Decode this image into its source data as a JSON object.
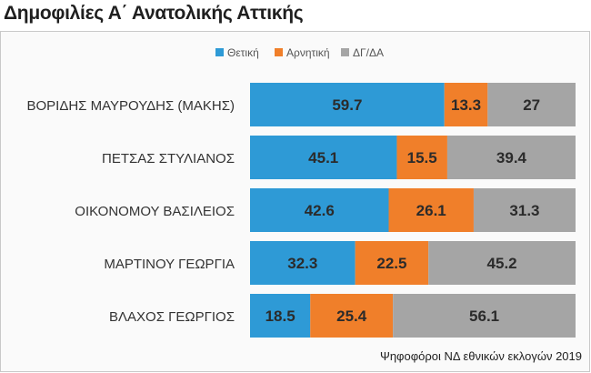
{
  "title": "Δημοφιλίες Α΄ Ανατολικής Αττικής",
  "note": "Ψηφοφόροι ΝΔ εθνικών εκλογών 2019",
  "chart_data": {
    "type": "bar",
    "orientation": "horizontal",
    "stacked": true,
    "categories": [
      "ΒΟΡΙΔΗΣ ΜΑΥΡΟΥΔΗΣ (ΜΑΚΗΣ)",
      "ΠΕΤΣΑΣ ΣΤΥΛΙΑΝΟΣ",
      "ΟΙΚΟΝΟΜΟΥ ΒΑΣΙΛΕΙΟΣ",
      "ΜΑΡΤΙΝΟΥ ΓΕΩΡΓΙΑ",
      "ΒΛΑΧΟΣ ΓΕΩΡΓΙΟΣ"
    ],
    "series": [
      {
        "name": "Θετική",
        "color": "#2e9ad6",
        "values": [
          59.7,
          45.1,
          42.6,
          32.3,
          18.5
        ]
      },
      {
        "name": "Αρνητική",
        "color": "#f07f2a",
        "values": [
          13.3,
          15.5,
          26.1,
          22.5,
          25.4
        ]
      },
      {
        "name": "ΔΓ/ΔΑ",
        "color": "#a5a5a5",
        "values": [
          27,
          39.4,
          31.3,
          45.2,
          56.1
        ]
      }
    ],
    "xlim": [
      0,
      100
    ],
    "legend": "top-center",
    "grid": false,
    "data_labels": true
  }
}
